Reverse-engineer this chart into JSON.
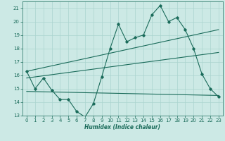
{
  "xlabel": "Humidex (Indice chaleur)",
  "x": [
    0,
    1,
    2,
    3,
    4,
    5,
    6,
    7,
    8,
    9,
    10,
    11,
    12,
    13,
    14,
    15,
    16,
    17,
    18,
    19,
    20,
    21,
    22,
    23
  ],
  "line1": [
    16.3,
    15.0,
    15.8,
    14.9,
    14.2,
    14.2,
    13.3,
    12.9,
    13.9,
    15.9,
    18.0,
    19.8,
    18.5,
    18.8,
    19.0,
    20.5,
    21.2,
    20.0,
    20.3,
    19.4,
    18.0,
    16.1,
    15.0,
    14.4
  ],
  "line2_x": [
    0,
    23
  ],
  "line2_y": [
    16.3,
    19.4
  ],
  "line3_x": [
    0,
    23
  ],
  "line3_y": [
    15.8,
    17.7
  ],
  "line4_x": [
    0,
    23
  ],
  "line4_y": [
    14.8,
    14.5
  ],
  "bg_color": "#cce9e5",
  "grid_color": "#aad4cf",
  "line_color": "#1a6b5a",
  "ylim": [
    13,
    21.5
  ],
  "yticks": [
    13,
    14,
    15,
    16,
    17,
    18,
    19,
    20,
    21
  ],
  "xticks": [
    0,
    1,
    2,
    3,
    4,
    5,
    6,
    7,
    8,
    9,
    10,
    11,
    12,
    13,
    14,
    15,
    16,
    17,
    18,
    19,
    20,
    21,
    22,
    23
  ]
}
